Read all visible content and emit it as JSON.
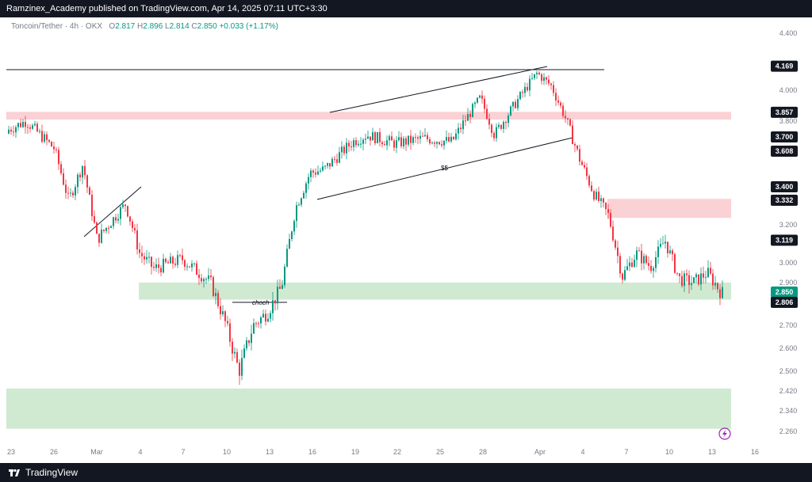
{
  "header": {
    "publisher": "Ramzinex_Academy published on TradingView.com, Apr 14, 2025 07:11 UTC+3:30"
  },
  "legend": {
    "symbol": "Toncoin/Tether · 4h · OKX",
    "o_label": "O",
    "o_value": "2.817",
    "h_label": "H",
    "h_value": "2.896",
    "l_label": "L",
    "l_value": "2.814",
    "c_label": "C",
    "c_value": "2.850",
    "change": "+0.033 (+1.17%)"
  },
  "footer": {
    "brand": "TradingView"
  },
  "colors": {
    "up": "#089981",
    "down": "#f23645",
    "supply_zone": "#f9c9cc",
    "demand_zone": "#c8e6c9",
    "badge_dark": "#131722",
    "badge_green": "#089981"
  },
  "chart_data": {
    "type": "candlestick",
    "title": "",
    "xlabel": "",
    "ylabel": "",
    "x_ticks": [
      "23",
      "26",
      "Mar",
      "4",
      "7",
      "10",
      "13",
      "16",
      "19",
      "22",
      "25",
      "28",
      "Apr",
      "4",
      "7",
      "10",
      "13",
      "16"
    ],
    "y_ticks": [
      "4.400",
      "4.000",
      "3.800",
      "3.200",
      "3.000",
      "2.900",
      "2.700",
      "2.600",
      "2.500",
      "2.420",
      "2.340",
      "2.260"
    ],
    "price_badges": [
      {
        "value": "4.169",
        "style": "dark"
      },
      {
        "value": "3.857",
        "style": "dark"
      },
      {
        "value": "3.700",
        "style": "dark"
      },
      {
        "value": "3.608",
        "style": "dark"
      },
      {
        "value": "3.400",
        "style": "dark"
      },
      {
        "value": "3.332",
        "style": "dark"
      },
      {
        "value": "3.119",
        "style": "dark"
      },
      {
        "value": "2.850",
        "style": "green"
      },
      {
        "value": "2.806",
        "style": "dark"
      }
    ],
    "zones": [
      {
        "kind": "supply",
        "from_date": "Feb 22",
        "to_date": "Apr 2",
        "low": 3.81,
        "high": 3.86
      },
      {
        "kind": "supply",
        "from_date": "Apr 6",
        "to_date": "Apr 14",
        "low": 3.24,
        "high": 3.35
      },
      {
        "kind": "demand",
        "from_date": "Mar 4",
        "to_date": "Apr 14",
        "low": 2.82,
        "high": 2.9
      },
      {
        "kind": "demand",
        "from_date": "Feb 22",
        "to_date": "Apr 14",
        "low": 2.27,
        "high": 2.43
      }
    ],
    "annotations": [
      "choch",
      "$$"
    ],
    "ohlc_close_path": [
      {
        "date": "Feb 22",
        "close": 3.72
      },
      {
        "date": "Feb 24",
        "close": 3.8
      },
      {
        "date": "Feb 26",
        "close": 3.64
      },
      {
        "date": "Feb 27",
        "close": 3.34
      },
      {
        "date": "Feb 28",
        "close": 3.55
      },
      {
        "date": "Mar 1",
        "close": 3.12
      },
      {
        "date": "Mar 3",
        "close": 3.32
      },
      {
        "date": "Mar 4",
        "close": 3.05
      },
      {
        "date": "Mar 5",
        "close": 2.97
      },
      {
        "date": "Mar 7",
        "close": 3.02
      },
      {
        "date": "Mar 9",
        "close": 2.9
      },
      {
        "date": "Mar 10",
        "close": 2.72
      },
      {
        "date": "Mar 11",
        "close": 2.5
      },
      {
        "date": "Mar 12",
        "close": 2.7
      },
      {
        "date": "Mar 13",
        "close": 2.76
      },
      {
        "date": "Mar 14",
        "close": 2.88
      },
      {
        "date": "Mar 15",
        "close": 3.3
      },
      {
        "date": "Mar 16",
        "close": 3.5
      },
      {
        "date": "Mar 17",
        "close": 3.52
      },
      {
        "date": "Mar 19",
        "close": 3.68
      },
      {
        "date": "Mar 20",
        "close": 3.72
      },
      {
        "date": "Mar 22",
        "close": 3.67
      },
      {
        "date": "Mar 24",
        "close": 3.7
      },
      {
        "date": "Mar 26",
        "close": 3.68
      },
      {
        "date": "Mar 28",
        "close": 3.95
      },
      {
        "date": "Mar 29",
        "close": 3.72
      },
      {
        "date": "Mar 30",
        "close": 3.85
      },
      {
        "date": "Apr 1",
        "close": 4.12
      },
      {
        "date": "Apr 2",
        "close": 4.03
      },
      {
        "date": "Apr 3",
        "close": 3.82
      },
      {
        "date": "Apr 4",
        "close": 3.58
      },
      {
        "date": "Apr 5",
        "close": 3.38
      },
      {
        "date": "Apr 6",
        "close": 3.26
      },
      {
        "date": "Apr 7",
        "close": 2.93
      },
      {
        "date": "Apr 8",
        "close": 3.05
      },
      {
        "date": "Apr 9",
        "close": 2.98
      },
      {
        "date": "Apr 10",
        "close": 3.12
      },
      {
        "date": "Apr 11",
        "close": 2.92
      },
      {
        "date": "Apr 12",
        "close": 2.9
      },
      {
        "date": "Apr 13",
        "close": 2.95
      },
      {
        "date": "Apr 14",
        "close": 2.85
      }
    ]
  }
}
